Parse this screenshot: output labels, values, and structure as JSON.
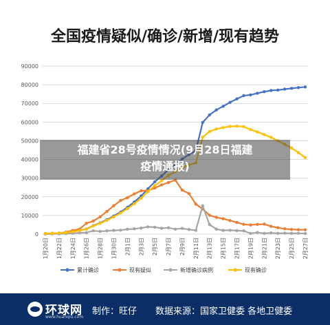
{
  "overlay": {
    "line1": "福建省28号疫情情况(9月28日福建",
    "line2": "疫情通报)"
  },
  "footer": {
    "logo": "环球网",
    "logo_sub": "www.huanqiu.com",
    "maker": "制作：旺仔",
    "source": "数据来源：国家卫健委 各地卫健委"
  },
  "colors": {
    "cumulative": "#4472c4",
    "suspected": "#ed7d31",
    "new_confirmed": "#a5a5a5",
    "current": "#ffc000",
    "footer_bg": "#0b2e66"
  },
  "chart_data": {
    "type": "line",
    "title": "全国疫情疑似/确诊/新增/现有趋势",
    "xlabel": "",
    "ylabel": "",
    "ylim": [
      0,
      90000
    ],
    "yticks": [
      "0",
      "10000",
      "20000",
      "30000",
      "40000",
      "50000",
      "60000",
      "70000",
      "80000",
      "90000"
    ],
    "grid": true,
    "legend_position": "bottom",
    "x": [
      "1月20日",
      "1月21日",
      "1月22日",
      "1月23日",
      "1月24日",
      "1月25日",
      "1月26日",
      "1月27日",
      "1月28日",
      "1月29日",
      "1月30日",
      "1月31日",
      "2月1日",
      "2月2日",
      "2月3日",
      "2月4日",
      "2月5日",
      "2月6日",
      "2月7日",
      "2月8日",
      "2月9日",
      "2月10日",
      "2月11日",
      "2月12日",
      "2月13日",
      "2月14日",
      "2月15日",
      "2月16日",
      "2月17日",
      "2月18日",
      "2月19日",
      "2月20日",
      "2月21日",
      "2月22日",
      "2月23日",
      "2月24日",
      "2月25日",
      "2月26日",
      "2月27日"
    ],
    "x_tick_labels": [
      "1月20日",
      "1月22日",
      "1月24日",
      "1月26日",
      "1月28日",
      "1月30日",
      "2月1日",
      "2月3日",
      "2月5日",
      "2月7日",
      "2月9日",
      "2月11日",
      "2月13日",
      "2月15日",
      "2月17日",
      "2月19日",
      "2月21日",
      "2月23日",
      "2月25日",
      "2月27日"
    ],
    "series": [
      {
        "name": "累计确诊",
        "values": [
          291,
          440,
          571,
          830,
          1287,
          1975,
          2744,
          4515,
          5974,
          7711,
          9692,
          11791,
          14380,
          17205,
          20438,
          24324,
          28018,
          31161,
          34546,
          37198,
          40171,
          42638,
          44653,
          59804,
          63851,
          66492,
          68500,
          70548,
          72436,
          74185,
          74576,
          75465,
          76288,
          76936,
          77150,
          77658,
          78064,
          78497,
          78824
        ]
      },
      {
        "name": "现有疑似",
        "values": [
          54,
          137,
          393,
          1072,
          1965,
          2684,
          5794,
          6973,
          9239,
          12167,
          15238,
          17988,
          19544,
          21558,
          23214,
          23260,
          24702,
          26359,
          27657,
          28942,
          23589,
          21675,
          16067,
          13435,
          10109,
          8969,
          8228,
          7264,
          6242,
          5248,
          4922,
          5206,
          5365,
          4148,
          3434,
          2824,
          2491,
          2358,
          2308
        ]
      },
      {
        "name": "新增确诊病例",
        "values": [
          77,
          149,
          131,
          259,
          444,
          688,
          769,
          1771,
          1459,
          1737,
          1982,
          2102,
          2590,
          2829,
          3235,
          3887,
          3694,
          3143,
          3399,
          2656,
          3062,
          2478,
          2015,
          15152,
          5090,
          2641,
          2009,
          2048,
          1886,
          1749,
          394,
          889,
          397,
          648,
          409,
          508,
          406,
          433,
          327
        ]
      },
      {
        "name": "现有确诊",
        "values": [
          285,
          430,
          553,
          802,
          1239,
          1914,
          2665,
          4370,
          5759,
          7394,
          9249,
          11269,
          13657,
          16228,
          19218,
          22742,
          26029,
          28584,
          31476,
          33500,
          35585,
          37040,
          38126,
          51897,
          54921,
          56303,
          57051,
          57715,
          57836,
          57558,
          55995,
          54722,
          53306,
          51839,
          50065,
          48124,
          46114,
          43620,
          40988
        ]
      }
    ]
  }
}
